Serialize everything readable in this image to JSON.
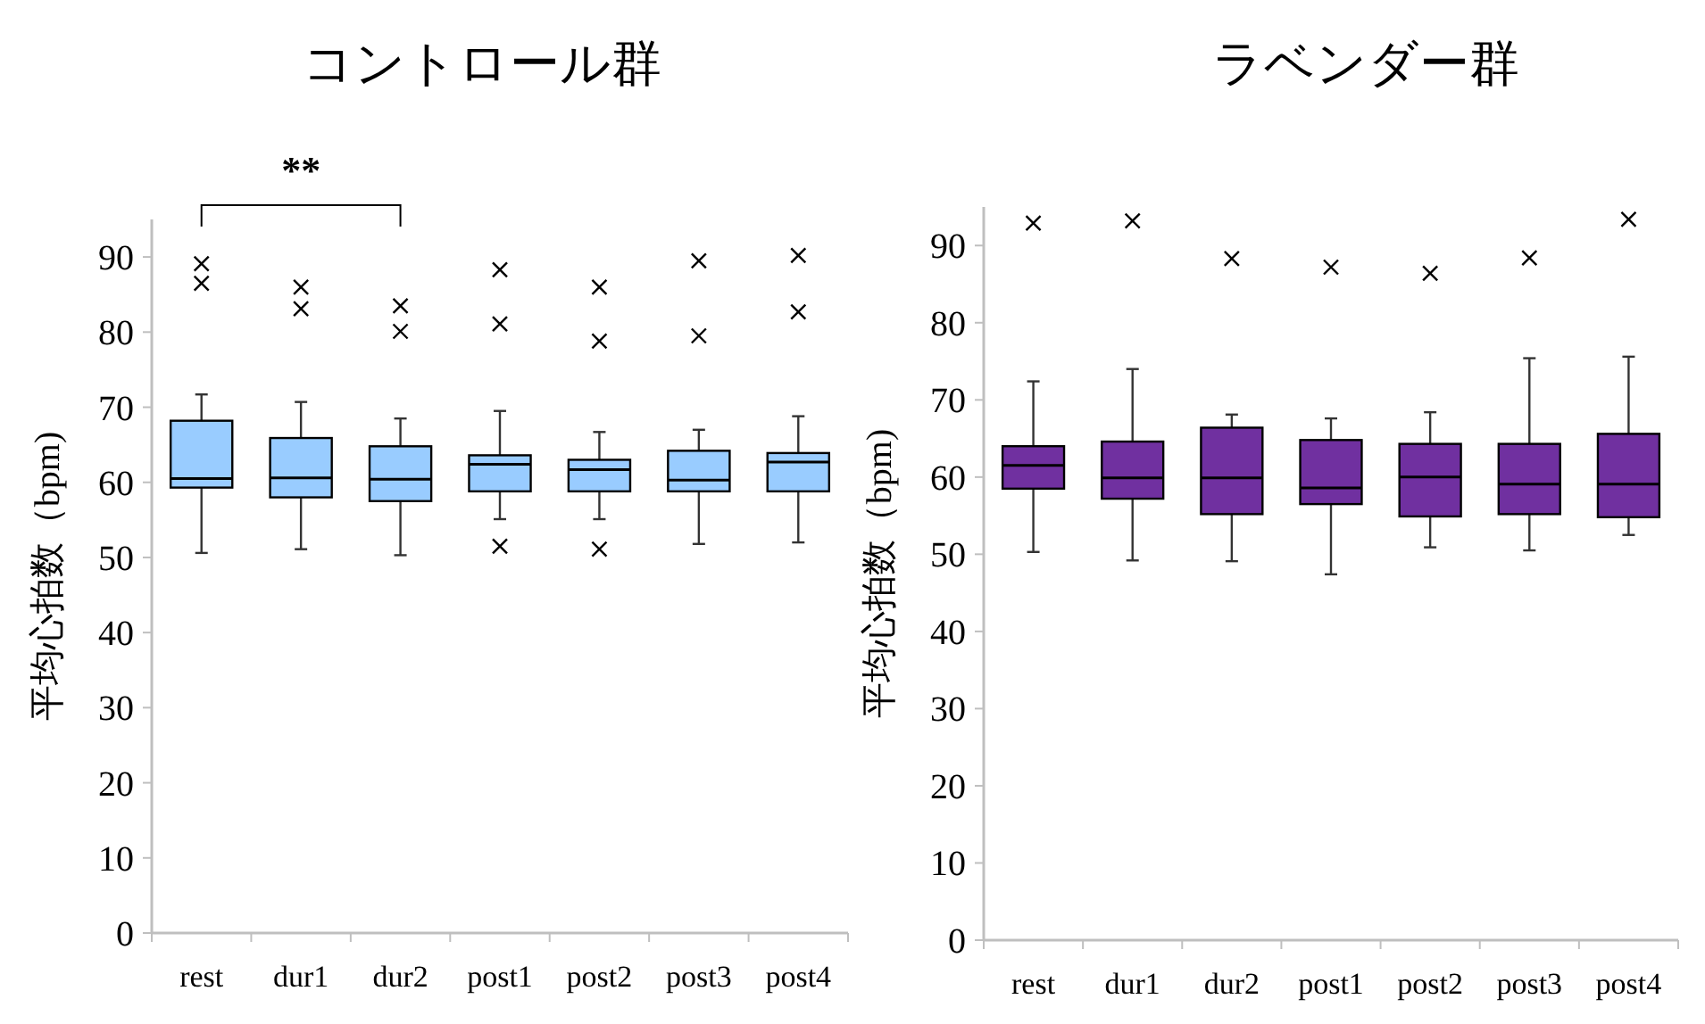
{
  "chart_data": [
    {
      "type": "box",
      "title": "コントロール群",
      "ylabel": "平均心拍数（bpm)",
      "categories": [
        "rest",
        "dur1",
        "dur2",
        "post1",
        "post2",
        "post3",
        "post4"
      ],
      "ylim": [
        0,
        95
      ],
      "yticks": [
        0,
        10,
        20,
        30,
        40,
        50,
        60,
        70,
        80,
        90
      ],
      "grid": false,
      "marker": "cross",
      "annotations": [
        "**"
      ],
      "series": [
        {
          "color": "#99ccff",
          "boxes": [
            {
              "low": 50.6,
              "q1": 59.3,
              "median": 60.5,
              "q3": 68.2,
              "high": 71.7,
              "outliers": [
                89.1,
                86.5
              ]
            },
            {
              "low": 51.1,
              "q1": 58.0,
              "median": 60.6,
              "q3": 65.9,
              "high": 70.7,
              "outliers": [
                86.0,
                83.1
              ]
            },
            {
              "low": 50.3,
              "q1": 57.5,
              "median": 60.4,
              "q3": 64.8,
              "high": 68.5,
              "outliers": [
                83.5,
                80.1
              ]
            },
            {
              "low": 55.1,
              "q1": 58.8,
              "median": 62.4,
              "q3": 63.6,
              "high": 69.5,
              "outliers": [
                88.3,
                81.1,
                51.5
              ]
            },
            {
              "low": 55.1,
              "q1": 58.8,
              "median": 61.7,
              "q3": 63.0,
              "high": 66.7,
              "outliers": [
                86.0,
                78.8,
                51.1
              ]
            },
            {
              "low": 51.8,
              "q1": 58.8,
              "median": 60.3,
              "q3": 64.2,
              "high": 67.0,
              "outliers": [
                89.5,
                79.5
              ]
            },
            {
              "low": 52.0,
              "q1": 58.8,
              "median": 62.7,
              "q3": 63.9,
              "high": 68.8,
              "outliers": [
                90.2,
                82.7
              ]
            }
          ]
        }
      ]
    },
    {
      "type": "box",
      "title": "ラベンダー群",
      "ylabel": "平均心拍数（bpm)",
      "categories": [
        "rest",
        "dur1",
        "dur2",
        "post1",
        "post2",
        "post3",
        "post4"
      ],
      "ylim": [
        0,
        95
      ],
      "yticks": [
        0,
        10,
        20,
        30,
        40,
        50,
        60,
        70,
        80,
        90
      ],
      "grid": false,
      "marker": "cross",
      "series": [
        {
          "color": "#7030a0",
          "boxes": [
            {
              "low": 50.3,
              "q1": 58.5,
              "median": 61.5,
              "q3": 64.0,
              "high": 72.4,
              "outliers": [
                92.9
              ]
            },
            {
              "low": 49.2,
              "q1": 57.2,
              "median": 59.9,
              "q3": 64.6,
              "high": 74.0,
              "outliers": [
                93.2
              ]
            },
            {
              "low": 49.1,
              "q1": 55.2,
              "median": 59.9,
              "q3": 66.4,
              "high": 68.1,
              "outliers": [
                88.3
              ]
            },
            {
              "low": 47.4,
              "q1": 56.5,
              "median": 58.6,
              "q3": 64.8,
              "high": 67.6,
              "outliers": [
                87.2
              ]
            },
            {
              "low": 50.9,
              "q1": 54.9,
              "median": 60.0,
              "q3": 64.3,
              "high": 68.4,
              "outliers": [
                86.4
              ]
            },
            {
              "low": 50.5,
              "q1": 55.2,
              "median": 59.1,
              "q3": 64.3,
              "high": 75.4,
              "outliers": [
                88.4
              ]
            },
            {
              "low": 52.5,
              "q1": 54.8,
              "median": 59.1,
              "q3": 65.6,
              "high": 75.6,
              "outliers": [
                93.4
              ]
            }
          ]
        }
      ]
    }
  ]
}
